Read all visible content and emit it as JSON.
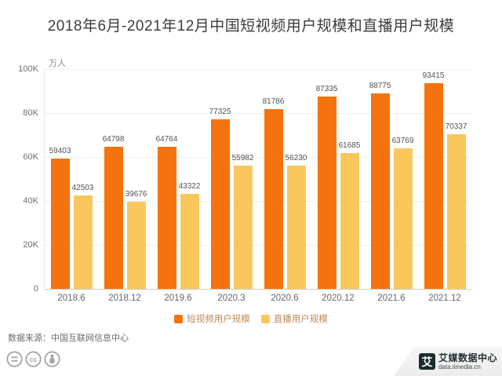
{
  "title": "2018年6月-2021年12月中国短视频用户规模和直播用户规模",
  "source": "数据来源：中国互联网信息中心",
  "brand": {
    "logo_char": "艾",
    "name": "艾媒数据中心",
    "site": "data.iimedia.cn"
  },
  "colors": {
    "short_video_bar": "#F5730F",
    "live_bar": "#FAC75D",
    "title_text": "#3C3C3C",
    "axis_text": "#666666",
    "value_label": "#525252",
    "legend_text": "#BD8A58",
    "gridline": "#EFEFEF",
    "logo_bg": "#1C2B2B"
  },
  "footer_icons": [
    "equals-license-icon",
    "cc-license-icon",
    "attribution-icon"
  ],
  "chart_data": {
    "type": "bar",
    "categories": [
      "2018.6",
      "2018.12",
      "2019.6",
      "2020.3",
      "2020.6",
      "2020.12",
      "2021.6",
      "2021.12"
    ],
    "series": [
      {
        "name": "短视频用户规模",
        "color": "#F5730F",
        "values": [
          59403,
          64798,
          64764,
          77325,
          81786,
          87335,
          88775,
          93415
        ]
      },
      {
        "name": "直播用户规模",
        "color": "#FAC75D",
        "values": [
          42503,
          39676,
          43322,
          55982,
          56230,
          61685,
          63769,
          70337
        ]
      }
    ],
    "ylabel": "万人",
    "ylim": [
      0,
      100000
    ],
    "yticks": [
      {
        "v": 0,
        "label": "0"
      },
      {
        "v": 20000,
        "label": "20K"
      },
      {
        "v": 40000,
        "label": "40K"
      },
      {
        "v": 60000,
        "label": "60K"
      },
      {
        "v": 80000,
        "label": "80K"
      },
      {
        "v": 100000,
        "label": "100K"
      }
    ],
    "grid": true,
    "legend_position": "bottom"
  }
}
